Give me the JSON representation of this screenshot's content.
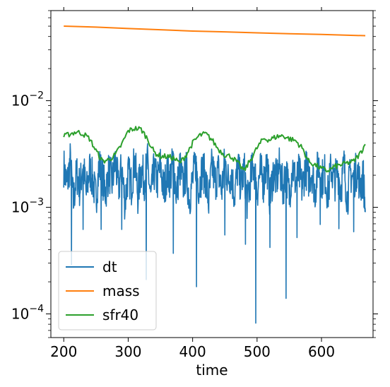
{
  "chart_data": {
    "type": "line",
    "xlabel": "time",
    "ylabel": "",
    "title": "",
    "xlim": [
      180,
      680
    ],
    "ylim": [
      6e-05,
      0.07
    ],
    "yscale": "log",
    "grid": false,
    "legend_position": "lower-left",
    "x_ticks": [
      {
        "value": 200,
        "label": "200"
      },
      {
        "value": 300,
        "label": "300"
      },
      {
        "value": 400,
        "label": "400"
      },
      {
        "value": 500,
        "label": "500"
      },
      {
        "value": 600,
        "label": "600"
      }
    ],
    "y_ticks": [
      {
        "value": 0.0001,
        "base": "10",
        "exp": "−4"
      },
      {
        "value": 0.001,
        "base": "10",
        "exp": "−3"
      },
      {
        "value": 0.01,
        "base": "10",
        "exp": "−2"
      }
    ],
    "series": [
      {
        "name": "dt",
        "color": "#1f77b4",
        "x": [
          200,
          205,
          210,
          215,
          220,
          225,
          230,
          235,
          240,
          245,
          250,
          255,
          260,
          265,
          270,
          275,
          280,
          285,
          290,
          295,
          300,
          305,
          310,
          315,
          320,
          325,
          330,
          335,
          340,
          345,
          350,
          355,
          360,
          365,
          370,
          375,
          380,
          385,
          390,
          395,
          400,
          405,
          410,
          415,
          420,
          425,
          430,
          435,
          440,
          445,
          450,
          455,
          460,
          465,
          470,
          475,
          480,
          485,
          490,
          495,
          500,
          505,
          510,
          515,
          520,
          525,
          530,
          535,
          540,
          545,
          550,
          555,
          560,
          565,
          570,
          575,
          580,
          585,
          590,
          595,
          600,
          605,
          610,
          615,
          620,
          625,
          630,
          635,
          640,
          645,
          650,
          655,
          660,
          665,
          668
        ],
        "y": [
          0.0024,
          0.0016,
          0.0027,
          0.0011,
          0.0021,
          0.0015,
          0.0026,
          0.0013,
          0.0023,
          0.0018,
          0.0012,
          0.0025,
          0.0019,
          0.0014,
          0.0022,
          0.0017,
          0.0027,
          0.0015,
          0.0024,
          0.0011,
          0.0021,
          0.0016,
          0.0028,
          0.0013,
          0.0023,
          0.0018,
          0.0026,
          0.0012,
          0.0022,
          0.0017,
          0.0025,
          0.0014,
          0.0021,
          0.0019,
          0.0027,
          0.0013,
          0.0024,
          0.0016,
          0.0022,
          0.0012,
          0.0018,
          0.0026,
          0.0015,
          0.0023,
          0.0019,
          0.0011,
          0.0025,
          0.0017,
          0.0022,
          0.0014,
          0.0027,
          0.0018,
          0.0021,
          0.0013,
          0.0024,
          0.0016,
          0.0023,
          0.0011,
          0.0019,
          0.0025,
          0.0014,
          0.0022,
          0.0017,
          0.0027,
          0.0012,
          0.0021,
          0.0018,
          0.0024,
          0.0015,
          0.0022,
          0.0013,
          0.0025,
          0.0017,
          0.0021,
          0.0015,
          0.0024,
          0.0019,
          0.0022,
          0.0014,
          0.0026,
          0.0018,
          0.0021,
          0.0013,
          0.0024,
          0.0017,
          0.0022,
          0.0015,
          0.0025,
          0.0012,
          0.0021,
          0.0018,
          0.0023,
          0.0016,
          0.0019,
          0.0009
        ],
        "spikes": [
          {
            "x": 212,
            "y": 0.00029
          },
          {
            "x": 230,
            "y": 0.00062
          },
          {
            "x": 258,
            "y": 0.00062
          },
          {
            "x": 290,
            "y": 0.00062
          },
          {
            "x": 328,
            "y": 0.00021
          },
          {
            "x": 370,
            "y": 0.00037
          },
          {
            "x": 406,
            "y": 0.00018
          },
          {
            "x": 450,
            "y": 0.00055
          },
          {
            "x": 482,
            "y": 0.00045
          },
          {
            "x": 498,
            "y": 8.2e-05
          },
          {
            "x": 520,
            "y": 0.00042
          },
          {
            "x": 545,
            "y": 0.00014
          },
          {
            "x": 562,
            "y": 0.00052
          },
          {
            "x": 598,
            "y": 0.00069
          },
          {
            "x": 627,
            "y": 0.00063
          },
          {
            "x": 650,
            "y": 0.00059
          }
        ]
      },
      {
        "name": "mass",
        "color": "#ff7f0e",
        "x": [
          200,
          250,
          300,
          350,
          400,
          450,
          500,
          550,
          600,
          650,
          668
        ],
        "y": [
          0.05,
          0.049,
          0.0475,
          0.0463,
          0.045,
          0.0442,
          0.0433,
          0.0425,
          0.0418,
          0.041,
          0.0407
        ]
      },
      {
        "name": "sfr40",
        "color": "#2ca02c",
        "x": [
          200,
          210,
          220,
          230,
          240,
          250,
          260,
          270,
          280,
          290,
          300,
          310,
          320,
          330,
          340,
          350,
          360,
          370,
          380,
          390,
          400,
          410,
          420,
          430,
          440,
          450,
          460,
          470,
          480,
          490,
          500,
          510,
          520,
          530,
          540,
          550,
          560,
          570,
          580,
          590,
          600,
          610,
          620,
          630,
          640,
          650,
          660,
          668
        ],
        "y": [
          0.0046,
          0.0049,
          0.0051,
          0.0049,
          0.0044,
          0.0034,
          0.0027,
          0.0028,
          0.0031,
          0.0039,
          0.0052,
          0.0055,
          0.0054,
          0.0044,
          0.0033,
          0.003,
          0.003,
          0.0029,
          0.0026,
          0.0031,
          0.004,
          0.0047,
          0.0049,
          0.0043,
          0.0035,
          0.0031,
          0.003,
          0.0026,
          0.0022,
          0.0028,
          0.0036,
          0.0044,
          0.0043,
          0.0046,
          0.0047,
          0.0044,
          0.0042,
          0.0036,
          0.0027,
          0.0025,
          0.0023,
          0.0022,
          0.0024,
          0.0025,
          0.0026,
          0.0027,
          0.0032,
          0.0039
        ]
      }
    ]
  }
}
